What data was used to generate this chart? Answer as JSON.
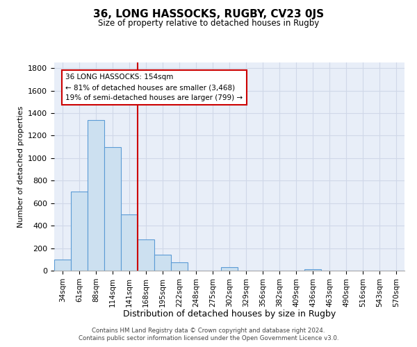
{
  "title": "36, LONG HASSOCKS, RUGBY, CV23 0JS",
  "subtitle": "Size of property relative to detached houses in Rugby",
  "xlabel": "Distribution of detached houses by size in Rugby",
  "ylabel": "Number of detached properties",
  "bar_labels": [
    "34sqm",
    "61sqm",
    "88sqm",
    "114sqm",
    "141sqm",
    "168sqm",
    "195sqm",
    "222sqm",
    "248sqm",
    "275sqm",
    "302sqm",
    "329sqm",
    "356sqm",
    "382sqm",
    "409sqm",
    "436sqm",
    "463sqm",
    "490sqm",
    "516sqm",
    "543sqm",
    "570sqm"
  ],
  "bar_values": [
    100,
    700,
    1340,
    1100,
    500,
    280,
    140,
    75,
    0,
    0,
    30,
    0,
    0,
    0,
    0,
    15,
    0,
    0,
    0,
    0,
    0
  ],
  "bar_color": "#cce0f0",
  "bar_edgecolor": "#5b9bd5",
  "ylim": [
    0,
    1850
  ],
  "yticks": [
    0,
    200,
    400,
    600,
    800,
    1000,
    1200,
    1400,
    1600,
    1800
  ],
  "vline_x": 4.5,
  "vline_color": "#cc0000",
  "annotation_title": "36 LONG HASSOCKS: 154sqm",
  "annotation_line1": "← 81% of detached houses are smaller (3,468)",
  "annotation_line2": "19% of semi-detached houses are larger (799) →",
  "footer1": "Contains HM Land Registry data © Crown copyright and database right 2024.",
  "footer2": "Contains public sector information licensed under the Open Government Licence v3.0.",
  "background_color": "#ffffff",
  "grid_color": "#d0d8e8",
  "ax_facecolor": "#e8eef8"
}
